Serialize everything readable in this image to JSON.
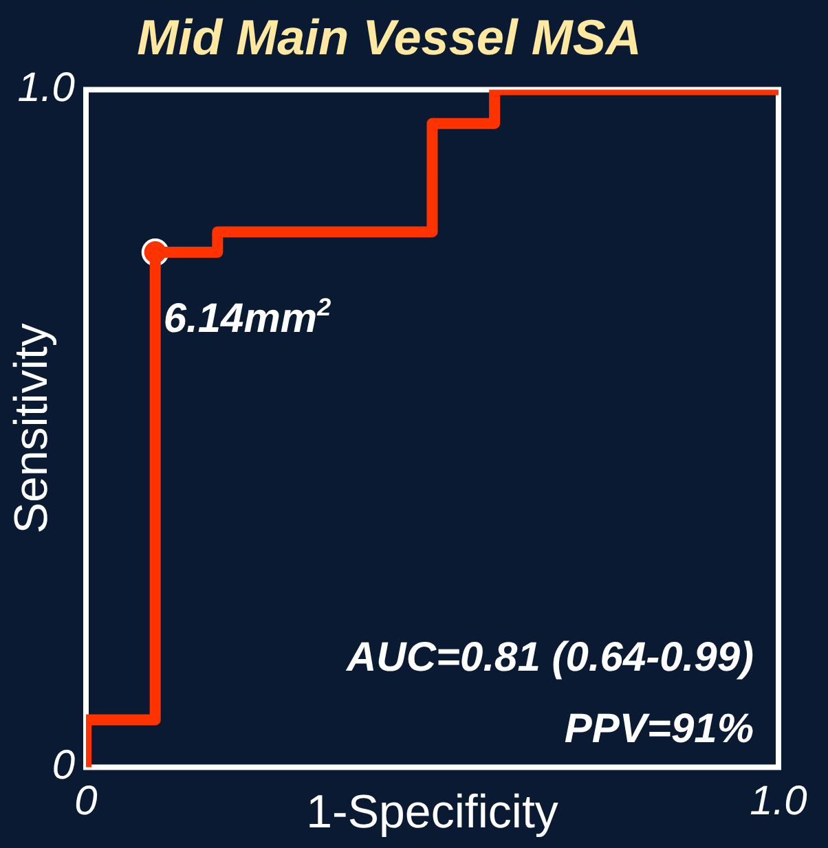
{
  "chart_data": {
    "type": "step",
    "title": "Mid Main Vessel MSA",
    "xlabel": "1-Specificity",
    "ylabel": "Sensitivity",
    "series": [
      {
        "color": "#ff3300",
        "x": [
          0,
          0,
          0.1,
          0.19,
          0.5,
          0.59,
          1.0
        ],
        "values": [
          0,
          0.07,
          0.76,
          0.79,
          0.95,
          1.0,
          1.0
        ],
        "marker": "none"
      },
      {
        "type": "scatter",
        "color": "#ff3300",
        "x": [
          0.1
        ],
        "values": [
          0.76
        ],
        "marker": "circle"
      }
    ],
    "xlim": [
      0,
      1
    ],
    "ylim": [
      0,
      1
    ],
    "xticks": [
      0,
      {
        "value": 1,
        "label": "1.0"
      }
    ],
    "yticks": [
      0,
      {
        "value": 1,
        "label": "1.0"
      }
    ],
    "legend": false,
    "annotations": [
      {
        "text": "6.14mm$^{2}$",
        "x": 0.1,
        "y": 0.76
      },
      "AUC=0.81 (0.64-0.99)",
      "PPV=91%"
    ]
  }
}
